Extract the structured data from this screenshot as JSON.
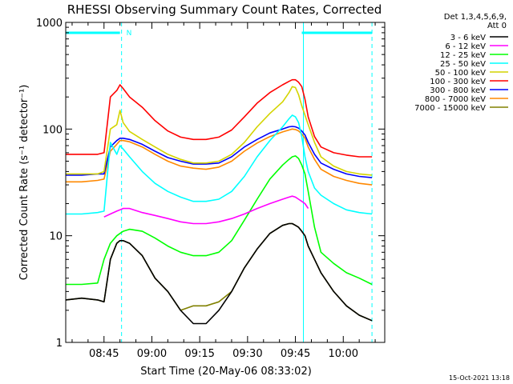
{
  "chart_data": {
    "type": "line",
    "title": "RHESSI Observing Summary Count Rates, Corrected",
    "xlabel": "Start Time (20-May-06 08:33:02)",
    "ylabel": "Corrected Count Rate (s⁻¹ detector⁻¹)",
    "yscale": "log",
    "ylim": [
      1,
      1000
    ],
    "xlim_minutes_after_start": [
      0,
      100
    ],
    "xticks": [
      {
        "label": "08:45",
        "minute": 12
      },
      {
        "label": "09:00",
        "minute": 27
      },
      {
        "label": "09:15",
        "minute": 42
      },
      {
        "label": "09:30",
        "minute": 57
      },
      {
        "label": "09:45",
        "minute": 72
      },
      {
        "label": "10:00",
        "minute": 87
      }
    ],
    "yticks": [
      {
        "label": "1",
        "value": 1
      },
      {
        "label": "10",
        "value": 10
      },
      {
        "label": "100",
        "value": 100
      },
      {
        "label": "1000",
        "value": 1000
      }
    ],
    "legend_header": [
      "Det 1,3,4,5,6,9,",
      "Att 0"
    ],
    "night_marker_label": "N",
    "annotation": "15-Oct-2021 13:18",
    "event_boundaries_minutes": [
      {
        "minute": 17.5,
        "style": "dashed"
      },
      {
        "minute": 74.5,
        "style": "solid"
      },
      {
        "minute": 96,
        "style": "dashed"
      }
    ],
    "night_periods_minutes": [
      [
        0,
        17
      ],
      [
        74,
        96
      ]
    ],
    "x": [
      0,
      5,
      10,
      12,
      14,
      16,
      17,
      18,
      20,
      24,
      28,
      32,
      36,
      40,
      44,
      48,
      52,
      56,
      60,
      64,
      68,
      70,
      71,
      72,
      73,
      74,
      75,
      76,
      78,
      80,
      84,
      88,
      92,
      96
    ],
    "series": [
      {
        "name": "3 - 6 keV",
        "color": "#000000",
        "values": [
          2.5,
          2.6,
          2.5,
          2.4,
          6,
          8.5,
          9,
          9,
          8.5,
          6.5,
          4,
          3,
          2,
          1.5,
          1.5,
          2,
          3,
          5,
          7.5,
          10.5,
          12.5,
          13,
          13,
          12.5,
          12,
          11,
          10,
          8,
          6,
          4.5,
          3,
          2.2,
          1.8,
          1.6
        ]
      },
      {
        "name": "6 - 12 keV",
        "color": "#ff00ff",
        "values": [
          null,
          null,
          null,
          15,
          16,
          17,
          17.5,
          18,
          18,
          16.5,
          15.5,
          14.5,
          13.5,
          13,
          13,
          13.5,
          14.5,
          16,
          18,
          20,
          22,
          23,
          23.5,
          23,
          22,
          21,
          20,
          18,
          null,
          null,
          null,
          null,
          null,
          null
        ]
      },
      {
        "name": "12 - 25 keV",
        "color": "#00ff00",
        "values": [
          3.5,
          3.5,
          3.6,
          6,
          8.5,
          10,
          10.5,
          11,
          11.5,
          11,
          9.5,
          8,
          7,
          6.5,
          6.5,
          7,
          9,
          14,
          22,
          34,
          46,
          52,
          55,
          56,
          53,
          46,
          38,
          26,
          12,
          7,
          5.5,
          4.5,
          4,
          3.5
        ]
      },
      {
        "name": "25 - 50 keV",
        "color": "#00ffff",
        "values": [
          16,
          16,
          16.5,
          17,
          75,
          58,
          70,
          65,
          55,
          40,
          31,
          26,
          23,
          21,
          21,
          22,
          26,
          36,
          55,
          78,
          105,
          125,
          135,
          130,
          115,
          85,
          55,
          40,
          28,
          24,
          20,
          17.5,
          16.5,
          16
        ]
      },
      {
        "name": "50 - 100 keV",
        "color": "#d4d400",
        "values": [
          38,
          38,
          38,
          40,
          100,
          110,
          150,
          115,
          95,
          80,
          68,
          58,
          52,
          48,
          48,
          50,
          58,
          75,
          105,
          140,
          180,
          220,
          250,
          245,
          210,
          165,
          135,
          110,
          75,
          55,
          45,
          40,
          38,
          37
        ]
      },
      {
        "name": "100 - 300 keV",
        "color": "#ff0000",
        "values": [
          58,
          58,
          58,
          60,
          200,
          230,
          260,
          240,
          200,
          160,
          120,
          96,
          84,
          80,
          80,
          84,
          98,
          130,
          175,
          220,
          260,
          280,
          290,
          290,
          275,
          250,
          190,
          130,
          85,
          68,
          60,
          57,
          55,
          55
        ]
      },
      {
        "name": "300 - 800 keV",
        "color": "#0000ff",
        "values": [
          37,
          37,
          38,
          38,
          68,
          78,
          82,
          82,
          80,
          72,
          62,
          54,
          50,
          47,
          47,
          48,
          55,
          68,
          80,
          92,
          100,
          105,
          106,
          105,
          102,
          96,
          88,
          75,
          58,
          48,
          42,
          38,
          36,
          35
        ]
      },
      {
        "name": "800 - 7000 keV",
        "color": "#ff8800",
        "values": [
          32,
          32,
          33,
          34,
          62,
          72,
          78,
          78,
          76,
          68,
          58,
          50,
          45,
          43,
          42,
          44,
          50,
          62,
          74,
          85,
          94,
          98,
          100,
          99,
          96,
          90,
          82,
          68,
          52,
          42,
          36,
          33,
          31,
          30
        ]
      },
      {
        "name": "7000 - 15000 keV",
        "color": "#808000",
        "values": [
          2.5,
          2.6,
          2.5,
          2.4,
          6,
          8.5,
          9,
          9,
          8.5,
          6.5,
          4,
          3,
          2,
          2.2,
          2.2,
          2.4,
          3,
          5,
          7.5,
          10.5,
          12.5,
          13,
          13,
          12.5,
          12,
          11,
          10,
          8,
          6,
          4.5,
          3,
          2.2,
          1.8,
          1.6
        ]
      }
    ]
  }
}
